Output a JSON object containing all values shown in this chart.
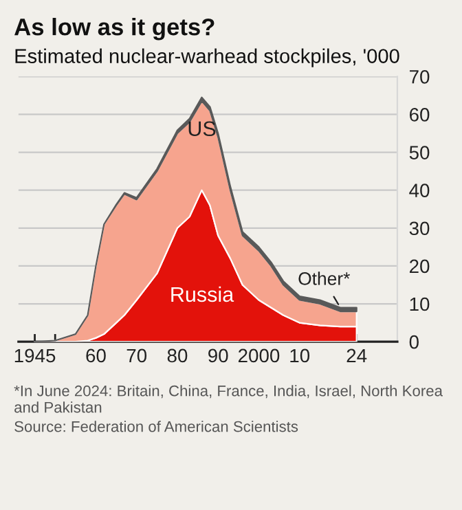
{
  "chart_data": {
    "type": "area",
    "stacked": true,
    "title": "As low as it gets?",
    "subtitle": "Estimated nuclear-warhead stockpiles, '000",
    "x": [
      1945,
      1950,
      1955,
      1958,
      1960,
      1962,
      1965,
      1967,
      1970,
      1975,
      1980,
      1983,
      1986,
      1988,
      1990,
      1993,
      1996,
      2000,
      2003,
      2006,
      2010,
      2015,
      2020,
      2024
    ],
    "series": [
      {
        "name": "Russia",
        "color": "#e3120b",
        "values": [
          0,
          0,
          0,
          0.3,
          1,
          2,
          5,
          7,
          11,
          18,
          30,
          33,
          40,
          36,
          28,
          22,
          15,
          11,
          9,
          7,
          5,
          4.3,
          4,
          4
        ]
      },
      {
        "name": "US",
        "color": "#f6a48e",
        "values": [
          0,
          0.3,
          2,
          6.7,
          19,
          29,
          31,
          32,
          26.5,
          27,
          25,
          25,
          23.5,
          25,
          26,
          18,
          13,
          13,
          11,
          8,
          6,
          5.7,
          4,
          4
        ]
      },
      {
        "name": "Other*",
        "color": "#595959",
        "values": [
          0,
          0,
          0,
          0,
          0,
          0,
          0.2,
          0.3,
          0.5,
          0.6,
          0.8,
          0.9,
          1,
          1,
          1,
          1,
          1,
          1,
          1,
          1,
          1,
          1,
          1,
          1
        ]
      }
    ],
    "xlim": [
      1941,
      2034
    ],
    "ylim": [
      0,
      70
    ],
    "xticks": [
      1945,
      {
        "value": 1950,
        "label": null
      },
      {
        "value": 1955,
        "label": null
      },
      {
        "value": 1960,
        "label": "60"
      },
      {
        "value": 1965,
        "label": null
      },
      {
        "value": 1970,
        "label": "70"
      },
      {
        "value": 1975,
        "label": null
      },
      {
        "value": 1980,
        "label": "80"
      },
      {
        "value": 1985,
        "label": null
      },
      {
        "value": 1990,
        "label": "90"
      },
      {
        "value": 1995,
        "label": null
      },
      2000,
      {
        "value": 2005,
        "label": null
      },
      {
        "value": 2010,
        "label": "10"
      },
      {
        "value": 2015,
        "label": null
      },
      {
        "value": 2020,
        "label": null
      },
      {
        "value": 2024,
        "label": "24"
      }
    ],
    "yticks": [
      0,
      10,
      20,
      30,
      40,
      50,
      60,
      70
    ],
    "grid": "y",
    "legend": false,
    "annotations": [
      "*In June 2024: Britain, China, France, India, Israel, North Korea and Pakistan",
      "Source: Federation of American Scientists"
    ]
  }
}
